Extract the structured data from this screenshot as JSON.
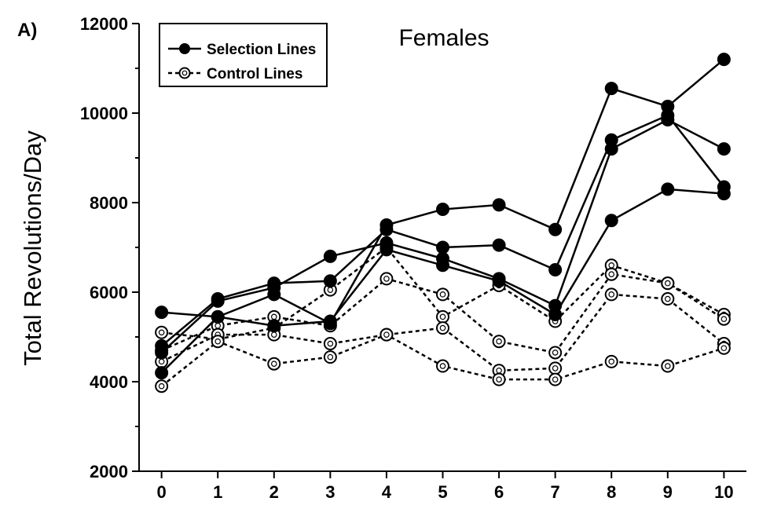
{
  "chart_data": {
    "type": "line",
    "panel_label": "A)",
    "title": "Females",
    "xlabel": "",
    "ylabel": "Total Revolutions/Day",
    "x": [
      0,
      1,
      2,
      3,
      4,
      5,
      6,
      7,
      8,
      9,
      10
    ],
    "x_ticks": [
      "0",
      "1",
      "2",
      "3",
      "4",
      "5",
      "6",
      "7",
      "8",
      "9",
      "10"
    ],
    "y_ticks": [
      "2000",
      "4000",
      "6000",
      "8000",
      "10000",
      "12000"
    ],
    "xlim": [
      -0.4,
      10.4
    ],
    "ylim": [
      2000,
      12000
    ],
    "grid": false,
    "legend_position": "top-left",
    "legend": [
      {
        "label": "Selection Lines",
        "marker": "filled-circle",
        "line": "solid"
      },
      {
        "label": "Control Lines",
        "marker": "open-circle",
        "line": "dashed"
      }
    ],
    "series": [
      {
        "group": "selection",
        "values": [
          5550,
          5450,
          5950,
          5300,
          7500,
          7850,
          7950,
          7400,
          10550,
          10150,
          11200
        ]
      },
      {
        "group": "selection",
        "values": [
          4800,
          5850,
          6200,
          6250,
          7400,
          7000,
          7050,
          6500,
          9400,
          9950,
          8350
        ]
      },
      {
        "group": "selection",
        "values": [
          4650,
          5800,
          6100,
          6800,
          7100,
          6750,
          6300,
          5700,
          9200,
          9850,
          9200
        ]
      },
      {
        "group": "selection",
        "values": [
          4200,
          5450,
          5250,
          5350,
          6950,
          6600,
          6250,
          5500,
          7600,
          8300,
          8200
        ]
      },
      {
        "group": "control",
        "values": [
          5100,
          4950,
          5200,
          6050,
          7000,
          5450,
          6150,
          5350,
          6600,
          6200,
          5500
        ]
      },
      {
        "group": "control",
        "values": [
          4700,
          5250,
          5450,
          5250,
          6300,
          5950,
          4900,
          4650,
          6400,
          6200,
          5400
        ]
      },
      {
        "group": "control",
        "values": [
          4450,
          5050,
          5050,
          4850,
          5050,
          5200,
          4250,
          4300,
          5950,
          5850,
          4850
        ]
      },
      {
        "group": "control",
        "values": [
          3900,
          4900,
          4400,
          4550,
          5050,
          4350,
          4050,
          4050,
          4450,
          4350,
          4750
        ]
      }
    ]
  }
}
